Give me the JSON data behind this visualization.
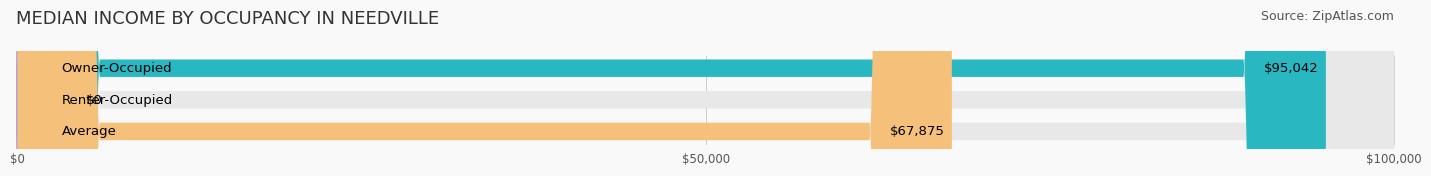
{
  "title": "MEDIAN INCOME BY OCCUPANCY IN NEEDVILLE",
  "source": "Source: ZipAtlas.com",
  "categories": [
    "Owner-Occupied",
    "Renter-Occupied",
    "Average"
  ],
  "values": [
    95042,
    0,
    67875
  ],
  "bar_colors": [
    "#29b8c2",
    "#b39ddb",
    "#f4c07a"
  ],
  "bg_bar_color": "#e8e8e8",
  "value_labels": [
    "$95,042",
    "$0",
    "$67,875"
  ],
  "xmax": 100000,
  "xticks": [
    0,
    50000,
    100000
  ],
  "xticklabels": [
    "$0",
    "$50,000",
    "$100,000"
  ],
  "title_fontsize": 13,
  "source_fontsize": 9,
  "label_fontsize": 9.5,
  "value_fontsize": 9.5,
  "bar_height": 0.55,
  "background_color": "#f9f9f9"
}
